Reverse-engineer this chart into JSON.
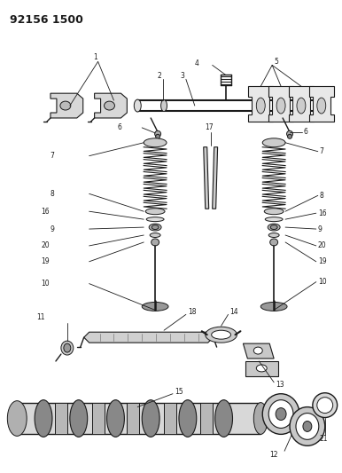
{
  "title": "92156 1500",
  "bg_color": "#ffffff",
  "line_color": "#1a1a1a",
  "title_fontsize": 9,
  "fig_width": 3.86,
  "fig_height": 5.33,
  "dpi": 100
}
